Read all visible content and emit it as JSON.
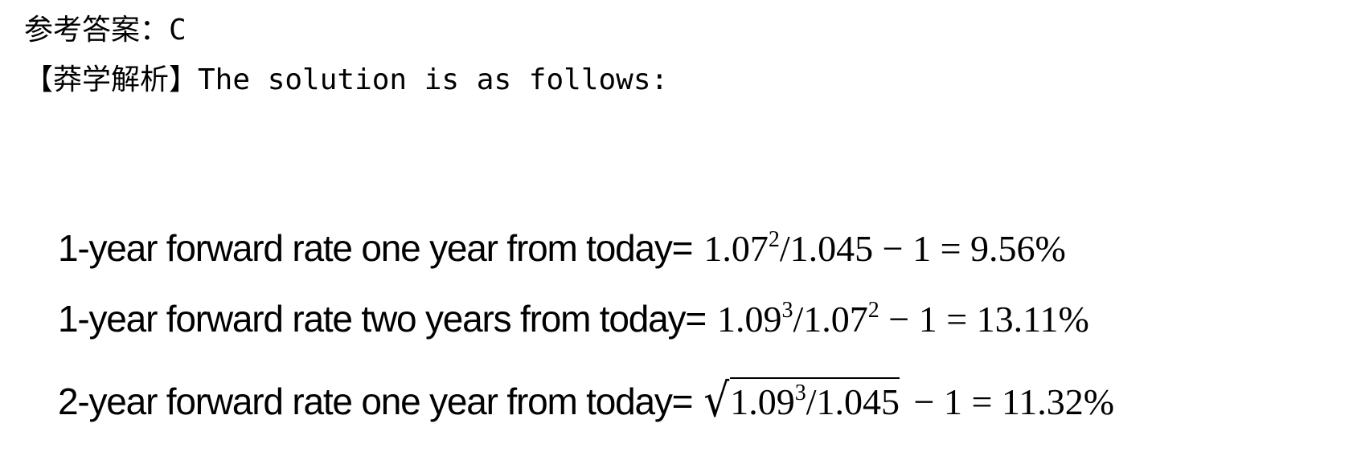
{
  "answer": {
    "text": "参考答案：C"
  },
  "analysis": {
    "text": "【莽学解析】The solution is as follows:"
  },
  "equations": [
    {
      "label": "1-year forward rate one year from today=",
      "base": "1.07",
      "base_exp": "2",
      "divisor": "/1.045",
      "divisor_exp": "",
      "rest": " − 1 = 9.56%"
    },
    {
      "label": "1-year forward rate two years from today=",
      "base": "1.09",
      "base_exp": "3",
      "divisor": "/1.07",
      "divisor_exp": "2",
      "rest": " − 1 = 13.11%"
    },
    {
      "label": "2-year forward rate one year from today=",
      "sqrt": "√",
      "base": "1.09",
      "base_exp": "3",
      "divisor": "/1.045",
      "rest": " − 1 = 11.32%"
    }
  ]
}
